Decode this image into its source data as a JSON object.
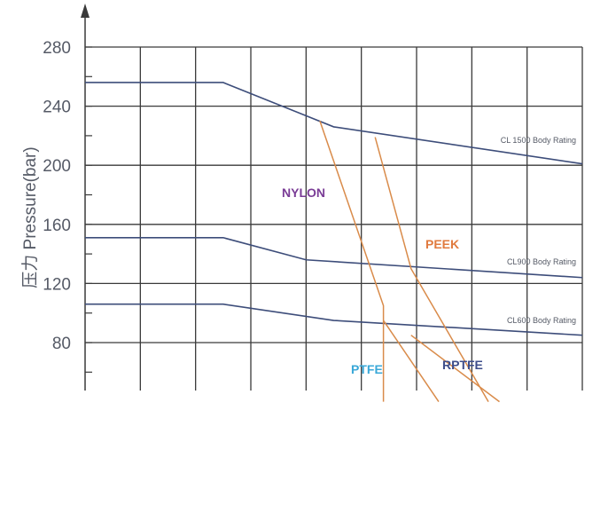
{
  "chart_data": {
    "type": "line",
    "title": "",
    "xlabel": "",
    "ylabel": "压力 Pressure(bar)",
    "ylim": [
      40,
      290
    ],
    "yticks": [
      80,
      120,
      160,
      200,
      240,
      280
    ],
    "x_columns": 9,
    "grid": true,
    "colors": {
      "grid": "#3a3a3a",
      "rating": "#3d4d7a",
      "seat": "#d98b4a",
      "text": "#555a66"
    },
    "series": [
      {
        "name": "CL 1500 Body Rating",
        "kind": "rating",
        "x": [
          0,
          2.5,
          4.5,
          9
        ],
        "y": [
          256,
          256,
          226,
          201
        ]
      },
      {
        "name": "CL900 Body Rating",
        "kind": "rating",
        "x": [
          0,
          2.5,
          4,
          9
        ],
        "y": [
          151,
          151,
          136,
          124
        ]
      },
      {
        "name": "CL600 Body Rating",
        "kind": "rating",
        "x": [
          0,
          2.5,
          4.5,
          9
        ],
        "y": [
          106,
          106,
          95,
          85
        ]
      },
      {
        "name": "NYLON",
        "kind": "seat",
        "x": [
          4.25,
          5.4,
          5.4
        ],
        "y": [
          230,
          105,
          40
        ]
      },
      {
        "name": "PEEK",
        "kind": "seat",
        "x": [
          5.25,
          5.9,
          7.3
        ],
        "y": [
          219,
          130,
          40
        ]
      },
      {
        "name": "PTFE",
        "kind": "seat",
        "x": [
          5.4,
          6.4
        ],
        "y": [
          95,
          40
        ]
      },
      {
        "name": "RPTFE",
        "kind": "seat",
        "x": [
          5.9,
          7.5
        ],
        "y": [
          85,
          40
        ]
      }
    ],
    "material_labels": [
      {
        "text": "NYLON",
        "color": "#7a3c96"
      },
      {
        "text": "PEEK",
        "color": "#e07a3e"
      },
      {
        "text": "PTFE",
        "color": "#3aa8d8"
      },
      {
        "text": "RPTFE",
        "color": "#3d4d8a"
      }
    ]
  }
}
